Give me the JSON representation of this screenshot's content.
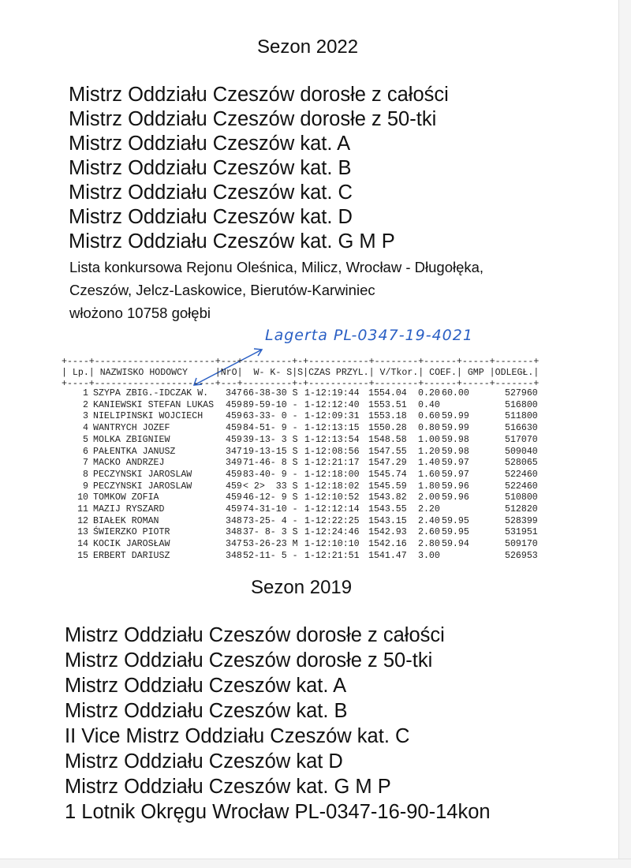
{
  "season_2022": {
    "title": "Sezon 2022",
    "titles": [
      "Mistrz Oddziału Czeszów dorosłe z całości",
      "Mistrz Oddziału Czeszów dorosłe z 50-tki",
      "Mistrz Oddziału Czeszów kat. A",
      "Mistrz Oddziału Czeszów kat. B",
      "Mistrz Oddziału Czeszów kat. C",
      "Mistrz Oddziału Czeszów kat. D",
      "Mistrz Oddziału Czeszów kat. G M P"
    ],
    "list_info": [
      "Lista konkursowa Rejonu Oleśnica, Milicz, Wrocław - Długołęka,",
      "Czeszów, Jelcz-Laskowice, Bierutów-Karwiniec",
      "włożono 10758 gołębi"
    ],
    "handwritten_note": "Lagerta PL-0347-19-4021",
    "note_color": "#2a5fc4"
  },
  "table": {
    "border_top": "+----+----------------------+---+---------+-+-----------+--------+------+-----+-------+",
    "header": "| Lp.| NAZWISKO HODOWCY     |NrO|  W- K- S|S|CZAS PRZYL.| V/Tkor.| COEF.| GMP |ODLEGŁ.|",
    "rows": [
      [
        "1",
        "SZYPA ZBIG.-IDCZAK W.",
        "347",
        "66-38-30 S",
        "1-12:19:44",
        "1554.04",
        "0.20",
        "60.00",
        "527960"
      ],
      [
        "2",
        "KANIEWSKI STEFAN LUKAS",
        "459",
        "89-59-10 -",
        "1-12:12:40",
        "1553.51",
        "0.40",
        "",
        "516800"
      ],
      [
        "3",
        "NIELIPINSKI WOJCIECH",
        "459",
        "63-33- 0 -",
        "1-12:09:31",
        "1553.18",
        "0.60",
        "59.99",
        "511800"
      ],
      [
        "4",
        "WANTRYCH JOZEF",
        "459",
        "84-51- 9 -",
        "1-12:13:15",
        "1550.28",
        "0.80",
        "59.99",
        "516630"
      ],
      [
        "5",
        "MOLKA ZBIGNIEW",
        "459",
        "39-13- 3 S",
        "1-12:13:54",
        "1548.58",
        "1.00",
        "59.98",
        "517070"
      ],
      [
        "6",
        "PAŁENTKA JANUSZ",
        "347",
        "19-13-15 S",
        "1-12:08:56",
        "1547.55",
        "1.20",
        "59.98",
        "509040"
      ],
      [
        "7",
        "MACKO ANDRZEJ",
        "349",
        "71-46- 8 S",
        "1-12:21:17",
        "1547.29",
        "1.40",
        "59.97",
        "528065"
      ],
      [
        "8",
        "PECZYNSKI JAROSLAW",
        "459",
        "83-40- 9 -",
        "1-12:18:00",
        "1545.74",
        "1.60",
        "59.97",
        "522460"
      ],
      [
        "9",
        "PECZYNSKI JAROSLAW",
        "459",
        "< 2>  33 S",
        "1-12:18:02",
        "1545.59",
        "1.80",
        "59.96",
        "522460"
      ],
      [
        "10",
        "TOMKOW ZOFIA",
        "459",
        "46-12- 9 S",
        "1-12:10:52",
        "1543.82",
        "2.00",
        "59.96",
        "510800"
      ],
      [
        "11",
        "MAZIJ RYSZARD",
        "459",
        "74-31-10 -",
        "1-12:12:14",
        "1543.55",
        "2.20",
        "",
        "512820"
      ],
      [
        "12",
        "BIAŁEK ROMAN",
        "348",
        "73-25- 4 -",
        "1-12:22:25",
        "1543.15",
        "2.40",
        "59.95",
        "528399"
      ],
      [
        "13",
        "ŚWIERZKO PIOTR",
        "348",
        "37- 8- 3 S",
        "1-12:24:46",
        "1542.93",
        "2.60",
        "59.95",
        "531951"
      ],
      [
        "14",
        "KOCIK JAROSŁAW",
        "347",
        "53-26-23 M",
        "1-12:10:10",
        "1542.16",
        "2.80",
        "59.94",
        "509170"
      ],
      [
        "15",
        "ERBERT DARIUSZ",
        "348",
        "52-11- 5 -",
        "1-12:21:51",
        "1541.47",
        "3.00",
        "",
        "526953"
      ]
    ]
  },
  "season_2019": {
    "title": "Sezon 2019",
    "titles": [
      "Mistrz Oddziału Czeszów dorosłe z całości",
      "Mistrz Oddziału Czeszów dorosłe z 50-tki",
      "Mistrz Oddziału Czeszów kat. A",
      "Mistrz Oddziału Czeszów kat. B",
      "II Vice Mistrz Oddziału Czeszów kat. C",
      "Mistrz Oddziału Czeszów kat D",
      "Mistrz Oddziału Czeszów kat. G M P",
      "1 Lotnik Okręgu Wrocław PL-0347-16-90-14kon"
    ]
  }
}
